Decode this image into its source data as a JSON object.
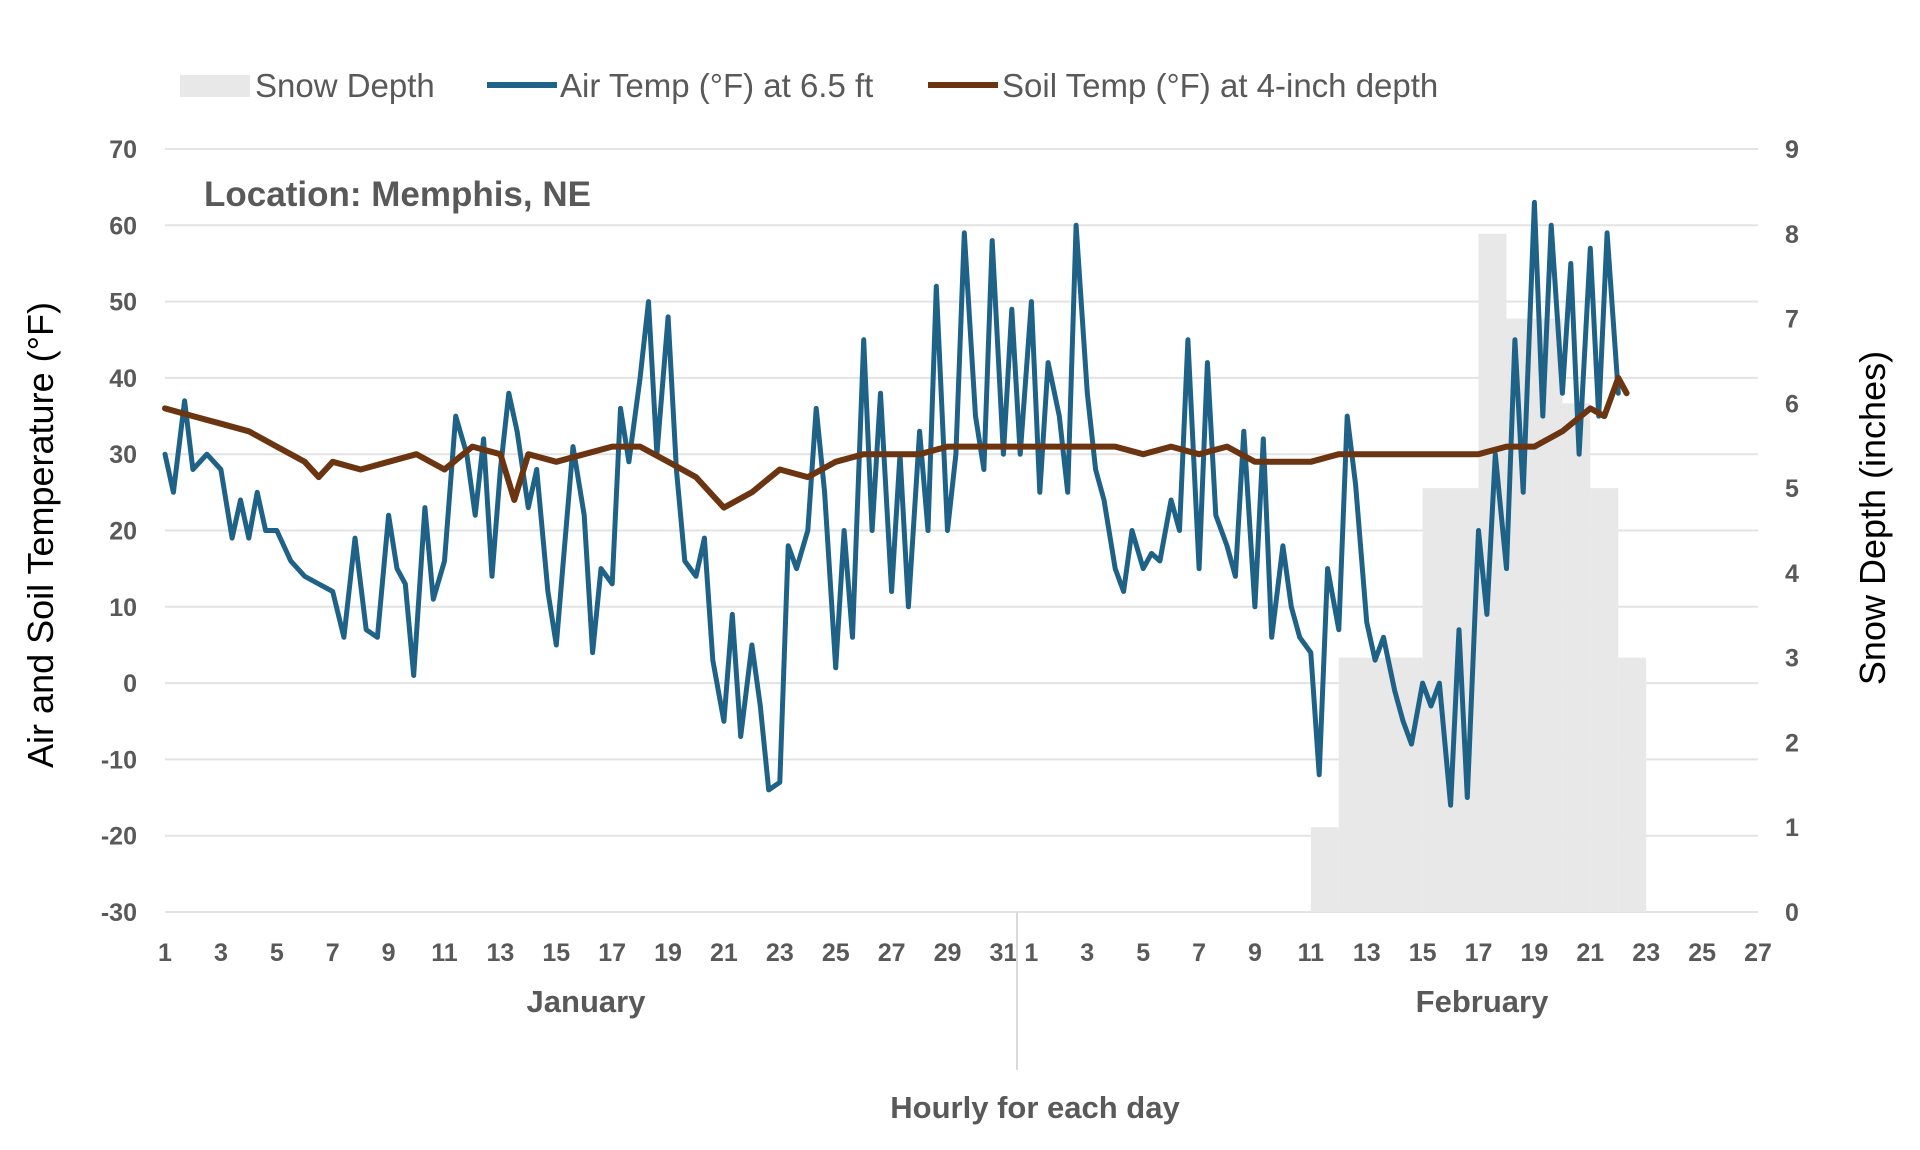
{
  "chart_data": {
    "type": "line",
    "location_label": "Location: Memphis, NE",
    "legend_position": "top",
    "grid": true,
    "y_left": {
      "label": "Air and Soil Temperature (°F)",
      "lim": [
        -30,
        70
      ],
      "ticks": [
        "70",
        "60",
        "50",
        "40",
        "30",
        "20",
        "10",
        "0",
        "-10",
        "-20",
        "-30"
      ]
    },
    "y_right": {
      "label": "Snow Depth (inches)",
      "lim": [
        0,
        9
      ],
      "ticks": [
        "9",
        "8",
        "7",
        "6",
        "5",
        "4",
        "3",
        "2",
        "1",
        "0"
      ]
    },
    "x": {
      "title": "Hourly for each day",
      "range_days": [
        1,
        58
      ],
      "months": [
        {
          "name": "January",
          "ticks": [
            "1",
            "3",
            "5",
            "7",
            "9",
            "11",
            "13",
            "15",
            "17",
            "19",
            "21",
            "23",
            "25",
            "27",
            "29",
            "31"
          ]
        },
        {
          "name": "February",
          "ticks": [
            "1",
            "3",
            "5",
            "7",
            "9",
            "11",
            "13",
            "15",
            "17",
            "19",
            "21",
            "23",
            "25",
            "27"
          ]
        }
      ]
    },
    "series": [
      {
        "name": "Snow Depth",
        "kind": "area",
        "axis": "right",
        "color": "#e8e8e8",
        "points": [
          [
            42.0,
            1
          ],
          [
            43.0,
            3
          ],
          [
            46.0,
            5
          ],
          [
            48.0,
            8
          ],
          [
            49.0,
            7
          ],
          [
            51.0,
            6
          ],
          [
            52.0,
            5
          ],
          [
            53.0,
            3
          ],
          [
            54.0,
            0
          ]
        ]
      },
      {
        "name": "Air Temp (°F) at 6.5 ft",
        "kind": "line",
        "axis": "left",
        "color": "#1f6287",
        "points": [
          [
            1.0,
            30
          ],
          [
            1.3,
            25
          ],
          [
            1.7,
            37
          ],
          [
            2.0,
            28
          ],
          [
            2.5,
            30
          ],
          [
            3.0,
            28
          ],
          [
            3.4,
            19
          ],
          [
            3.7,
            24
          ],
          [
            4.0,
            19
          ],
          [
            4.3,
            25
          ],
          [
            4.6,
            20
          ],
          [
            5.0,
            20
          ],
          [
            5.5,
            16
          ],
          [
            6.0,
            14
          ],
          [
            6.5,
            13
          ],
          [
            7.0,
            12
          ],
          [
            7.4,
            6
          ],
          [
            7.8,
            19
          ],
          [
            8.2,
            7
          ],
          [
            8.6,
            6
          ],
          [
            9.0,
            22
          ],
          [
            9.3,
            15
          ],
          [
            9.6,
            13
          ],
          [
            9.9,
            1
          ],
          [
            10.3,
            23
          ],
          [
            10.6,
            11
          ],
          [
            11.0,
            16
          ],
          [
            11.4,
            35
          ],
          [
            11.8,
            30
          ],
          [
            12.1,
            22
          ],
          [
            12.4,
            32
          ],
          [
            12.7,
            14
          ],
          [
            13.0,
            28
          ],
          [
            13.3,
            38
          ],
          [
            13.6,
            33
          ],
          [
            14.0,
            23
          ],
          [
            14.3,
            28
          ],
          [
            14.7,
            12
          ],
          [
            15.0,
            5
          ],
          [
            15.3,
            18
          ],
          [
            15.6,
            31
          ],
          [
            16.0,
            22
          ],
          [
            16.3,
            4
          ],
          [
            16.6,
            15
          ],
          [
            17.0,
            13
          ],
          [
            17.3,
            36
          ],
          [
            17.6,
            29
          ],
          [
            18.0,
            40
          ],
          [
            18.3,
            50
          ],
          [
            18.6,
            30
          ],
          [
            19.0,
            48
          ],
          [
            19.3,
            28
          ],
          [
            19.6,
            16
          ],
          [
            20.0,
            14
          ],
          [
            20.3,
            19
          ],
          [
            20.6,
            3
          ],
          [
            21.0,
            -5
          ],
          [
            21.3,
            9
          ],
          [
            21.6,
            -7
          ],
          [
            22.0,
            5
          ],
          [
            22.3,
            -3
          ],
          [
            22.6,
            -14
          ],
          [
            23.0,
            -13
          ],
          [
            23.3,
            18
          ],
          [
            23.6,
            15
          ],
          [
            24.0,
            20
          ],
          [
            24.3,
            36
          ],
          [
            24.6,
            25
          ],
          [
            25.0,
            2
          ],
          [
            25.3,
            20
          ],
          [
            25.6,
            6
          ],
          [
            26.0,
            45
          ],
          [
            26.3,
            20
          ],
          [
            26.6,
            38
          ],
          [
            27.0,
            12
          ],
          [
            27.3,
            30
          ],
          [
            27.6,
            10
          ],
          [
            28.0,
            33
          ],
          [
            28.3,
            20
          ],
          [
            28.6,
            52
          ],
          [
            29.0,
            20
          ],
          [
            29.3,
            30
          ],
          [
            29.6,
            59
          ],
          [
            30.0,
            35
          ],
          [
            30.3,
            28
          ],
          [
            30.6,
            58
          ],
          [
            31.0,
            30
          ],
          [
            31.3,
            49
          ],
          [
            31.6,
            30
          ],
          [
            32.0,
            50
          ],
          [
            32.3,
            25
          ],
          [
            32.6,
            42
          ],
          [
            33.0,
            35
          ],
          [
            33.3,
            25
          ],
          [
            33.6,
            60
          ],
          [
            34.0,
            38
          ],
          [
            34.3,
            28
          ],
          [
            34.6,
            24
          ],
          [
            35.0,
            15
          ],
          [
            35.3,
            12
          ],
          [
            35.6,
            20
          ],
          [
            36.0,
            15
          ],
          [
            36.3,
            17
          ],
          [
            36.6,
            16
          ],
          [
            37.0,
            24
          ],
          [
            37.3,
            20
          ],
          [
            37.6,
            45
          ],
          [
            38.0,
            15
          ],
          [
            38.3,
            42
          ],
          [
            38.6,
            22
          ],
          [
            39.0,
            18
          ],
          [
            39.3,
            14
          ],
          [
            39.6,
            33
          ],
          [
            40.0,
            10
          ],
          [
            40.3,
            32
          ],
          [
            40.6,
            6
          ],
          [
            41.0,
            18
          ],
          [
            41.3,
            10
          ],
          [
            41.6,
            6
          ],
          [
            42.0,
            4
          ],
          [
            42.3,
            -12
          ],
          [
            42.6,
            15
          ],
          [
            43.0,
            7
          ],
          [
            43.3,
            35
          ],
          [
            43.6,
            26
          ],
          [
            44.0,
            8
          ],
          [
            44.3,
            3
          ],
          [
            44.6,
            6
          ],
          [
            45.0,
            -1
          ],
          [
            45.3,
            -5
          ],
          [
            45.6,
            -8
          ],
          [
            46.0,
            0
          ],
          [
            46.3,
            -3
          ],
          [
            46.6,
            0
          ],
          [
            47.0,
            -16
          ],
          [
            47.3,
            7
          ],
          [
            47.6,
            -15
          ],
          [
            48.0,
            20
          ],
          [
            48.3,
            9
          ],
          [
            48.6,
            30
          ],
          [
            49.0,
            15
          ],
          [
            49.3,
            45
          ],
          [
            49.6,
            25
          ],
          [
            50.0,
            63
          ],
          [
            50.3,
            35
          ],
          [
            50.6,
            60
          ],
          [
            51.0,
            38
          ],
          [
            51.3,
            55
          ],
          [
            51.6,
            30
          ],
          [
            52.0,
            57
          ],
          [
            52.3,
            35
          ],
          [
            52.6,
            59
          ],
          [
            53.0,
            38
          ]
        ]
      },
      {
        "name": "Soil Temp (°F) at 4-inch depth",
        "kind": "line",
        "axis": "left",
        "color": "#6b3512",
        "points": [
          [
            1.0,
            36
          ],
          [
            2.0,
            35
          ],
          [
            3.0,
            34
          ],
          [
            4.0,
            33
          ],
          [
            5.0,
            31
          ],
          [
            6.0,
            29
          ],
          [
            6.5,
            27
          ],
          [
            7.0,
            29
          ],
          [
            8.0,
            28
          ],
          [
            9.0,
            29
          ],
          [
            10.0,
            30
          ],
          [
            11.0,
            28
          ],
          [
            12.0,
            31
          ],
          [
            13.0,
            30
          ],
          [
            13.5,
            24
          ],
          [
            14.0,
            30
          ],
          [
            15.0,
            29
          ],
          [
            16.0,
            30
          ],
          [
            17.0,
            31
          ],
          [
            18.0,
            31
          ],
          [
            19.0,
            29
          ],
          [
            20.0,
            27
          ],
          [
            21.0,
            23
          ],
          [
            22.0,
            25
          ],
          [
            23.0,
            28
          ],
          [
            24.0,
            27
          ],
          [
            25.0,
            29
          ],
          [
            26.0,
            30
          ],
          [
            27.0,
            30
          ],
          [
            28.0,
            30
          ],
          [
            29.0,
            31
          ],
          [
            30.0,
            31
          ],
          [
            31.0,
            31
          ],
          [
            32.0,
            31
          ],
          [
            33.0,
            31
          ],
          [
            34.0,
            31
          ],
          [
            35.0,
            31
          ],
          [
            36.0,
            30
          ],
          [
            37.0,
            31
          ],
          [
            38.0,
            30
          ],
          [
            39.0,
            31
          ],
          [
            40.0,
            29
          ],
          [
            41.0,
            29
          ],
          [
            42.0,
            29
          ],
          [
            43.0,
            30
          ],
          [
            44.0,
            30
          ],
          [
            45.0,
            30
          ],
          [
            46.0,
            30
          ],
          [
            47.0,
            30
          ],
          [
            48.0,
            30
          ],
          [
            49.0,
            31
          ],
          [
            50.0,
            31
          ],
          [
            51.0,
            33
          ],
          [
            52.0,
            36
          ],
          [
            52.5,
            35
          ],
          [
            53.0,
            40
          ],
          [
            53.3,
            38
          ]
        ]
      }
    ]
  }
}
